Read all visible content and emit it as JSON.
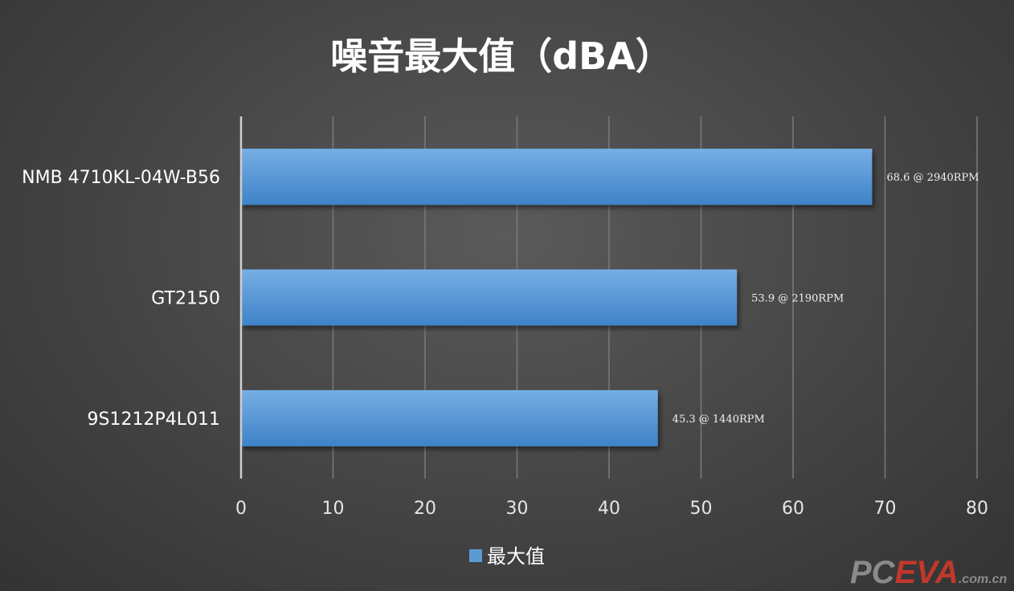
{
  "chart_data": {
    "type": "bar",
    "orientation": "horizontal",
    "title": "噪音最大值（dBA）",
    "categories": [
      "NMB 4710KL-04W-B56",
      "GT2150",
      "9S1212P4L011"
    ],
    "series": [
      {
        "name": "最大值",
        "values": [
          68.6,
          53.9,
          45.3
        ],
        "color": "#5b9bd5"
      }
    ],
    "data_labels": [
      "68.6 @ 2940RPM",
      "53.9 @ 2190RPM",
      "45.3 @ 1440RPM"
    ],
    "xlim": [
      0,
      80
    ],
    "xticks": [
      0,
      10,
      20,
      30,
      40,
      50,
      60,
      70,
      80
    ],
    "grid": true,
    "legend": "bottom"
  },
  "watermark": {
    "text_pc": "PC",
    "text_eva": "EVA",
    "text_domain": ".com.cn",
    "color_pc": "#8a8a8a",
    "color_eva": "#c0392b"
  }
}
